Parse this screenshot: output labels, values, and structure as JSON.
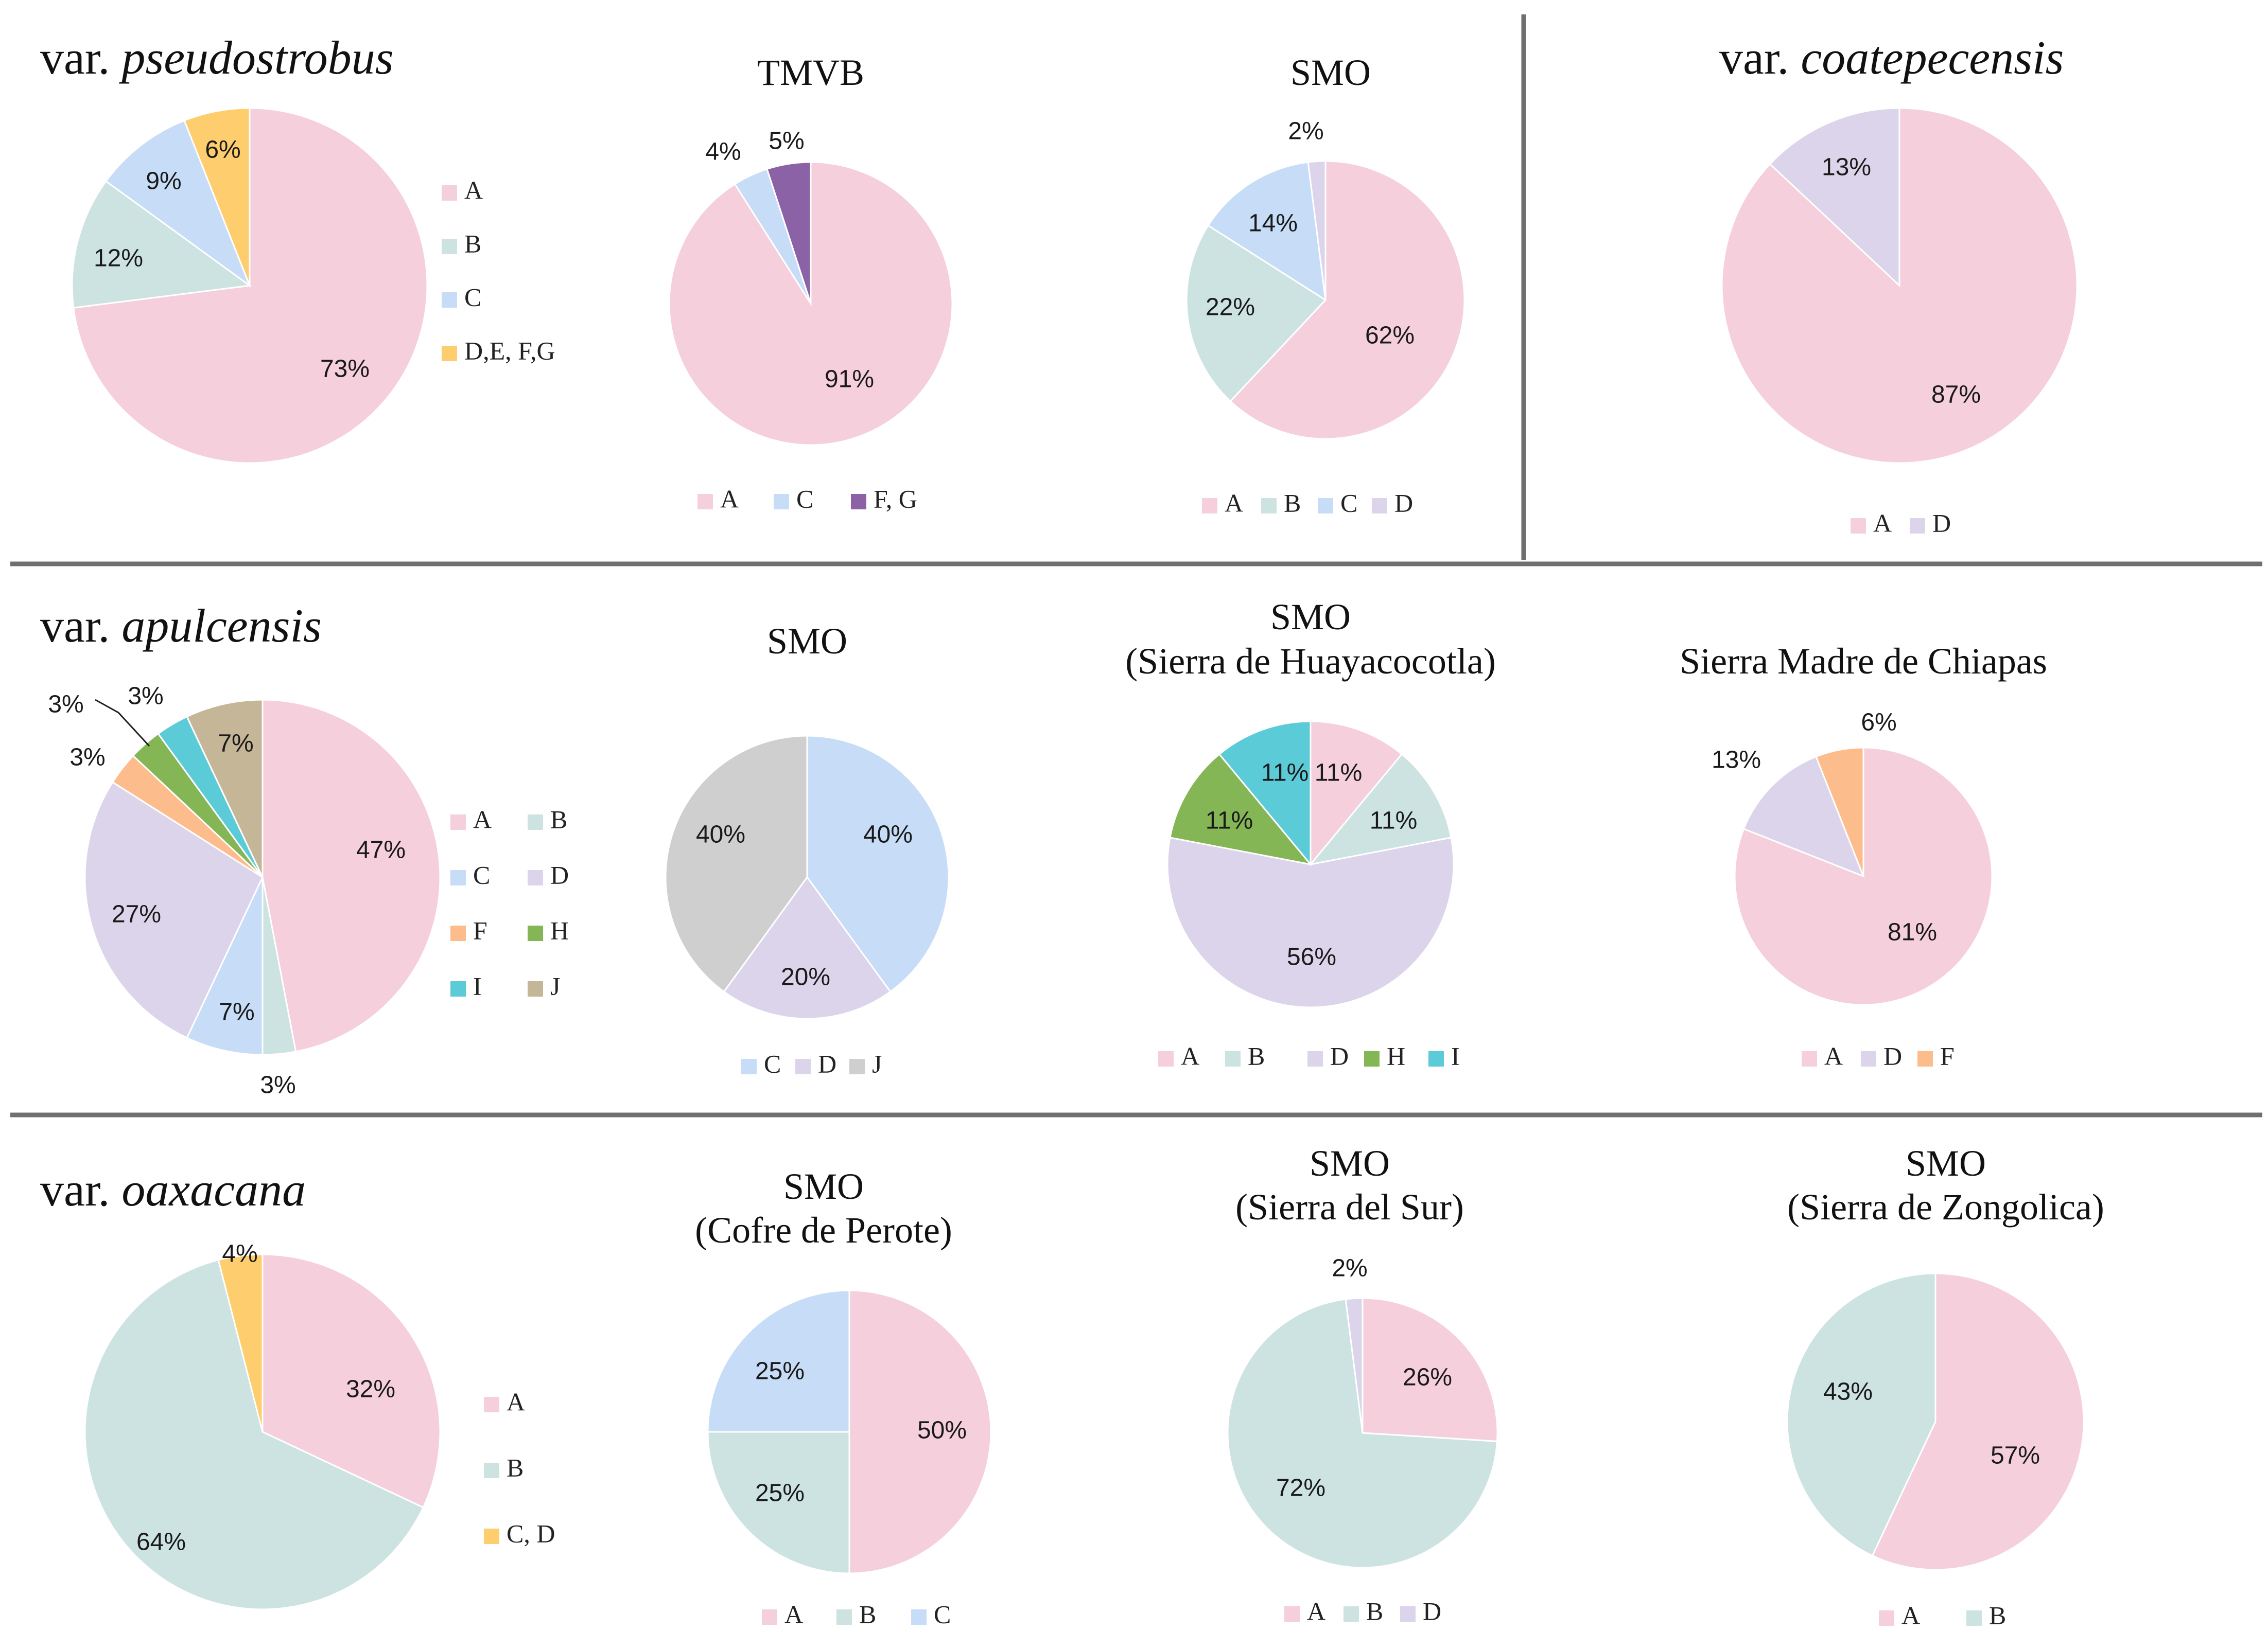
{
  "colors": {
    "A": "#f5cfdb",
    "B": "#cce3e2",
    "C": "#c7dcf7",
    "D": "#dcd4ea",
    "DEFG": "#fdcd6e",
    "FG": "#8b62a6",
    "F": "#fdbc8c",
    "H": "#84b656",
    "I": "#5ccbd8",
    "J": "#c4b696",
    "J_grey": "#cfcfcf",
    "CD": "#fdcd6e",
    "divider": "#6f6f6f"
  },
  "chart_data": [
    {
      "type": "pie",
      "id": "pseudostrobus",
      "title_prefix": "var. ",
      "title_italic": "pseudostrobus",
      "labels": [
        "A",
        "B",
        "C",
        "D,E, F,G"
      ],
      "values": [
        73,
        12,
        9,
        6
      ],
      "data_labels": [
        "73%",
        "12%",
        "9%",
        "6%"
      ],
      "color_keys": [
        "A",
        "B",
        "C",
        "DEFG"
      ],
      "legend_position": "right"
    },
    {
      "type": "pie",
      "id": "tmvb",
      "title": "TMVB",
      "labels": [
        "A",
        "C",
        "F, G"
      ],
      "values": [
        91,
        4,
        5
      ],
      "data_labels": [
        "91%",
        "4%",
        "5%"
      ],
      "color_keys": [
        "A",
        "C",
        "FG"
      ],
      "legend_position": "bottom"
    },
    {
      "type": "pie",
      "id": "smo-1",
      "title": "SMO",
      "labels": [
        "A",
        "B",
        "C",
        "D"
      ],
      "values": [
        62,
        22,
        14,
        2
      ],
      "data_labels": [
        "62%",
        "22%",
        "14%",
        "2%"
      ],
      "color_keys": [
        "A",
        "B",
        "C",
        "D"
      ],
      "legend_position": "bottom"
    },
    {
      "type": "pie",
      "id": "coatepecensis",
      "title_prefix": "var. ",
      "title_italic": "coatepecensis",
      "labels": [
        "A",
        "D"
      ],
      "values": [
        87,
        13
      ],
      "data_labels": [
        "87%",
        "13%"
      ],
      "color_keys": [
        "A",
        "D"
      ],
      "legend_position": "bottom"
    },
    {
      "type": "pie",
      "id": "apulcensis",
      "title_prefix": "var. ",
      "title_italic": "apulcensis",
      "labels": [
        "A",
        "B",
        "C",
        "D",
        "F",
        "H",
        "I",
        "J"
      ],
      "values": [
        47,
        3,
        7,
        27,
        3,
        3,
        3,
        7
      ],
      "data_labels": [
        "47%",
        "3%",
        "7%",
        "27%",
        "3%",
        "3%",
        "3%",
        "7%"
      ],
      "color_keys": [
        "A",
        "B",
        "C",
        "D",
        "F",
        "H",
        "I",
        "J"
      ],
      "legend_position": "right"
    },
    {
      "type": "pie",
      "id": "smo-2",
      "title": "SMO",
      "labels": [
        "C",
        "D",
        "J"
      ],
      "values": [
        40,
        20,
        40
      ],
      "data_labels": [
        "40%",
        "20%",
        "40%"
      ],
      "color_keys": [
        "C",
        "D",
        "J_grey"
      ],
      "legend_position": "bottom"
    },
    {
      "type": "pie",
      "id": "huayacocotla",
      "title": "SMO",
      "subtitle": "(Sierra de Huayacocotla)",
      "labels": [
        "A",
        "B",
        "D",
        "H",
        "I"
      ],
      "values": [
        11,
        11,
        56,
        11,
        11
      ],
      "data_labels": [
        "11%",
        "11%",
        "56%",
        "11%",
        "11%"
      ],
      "color_keys": [
        "A",
        "B",
        "D",
        "H",
        "I"
      ],
      "legend_position": "bottom"
    },
    {
      "type": "pie",
      "id": "chiapas",
      "title": "Sierra Madre de Chiapas",
      "labels": [
        "A",
        "D",
        "F"
      ],
      "values": [
        81,
        13,
        6
      ],
      "data_labels": [
        "81%",
        "13%",
        "6%"
      ],
      "color_keys": [
        "A",
        "D",
        "F"
      ],
      "legend_position": "bottom"
    },
    {
      "type": "pie",
      "id": "oaxacana",
      "title_prefix": "var. ",
      "title_italic": "oaxacana",
      "labels": [
        "A",
        "B",
        "C, D"
      ],
      "values": [
        32,
        64,
        4
      ],
      "data_labels": [
        "32%",
        "64%",
        "4%"
      ],
      "color_keys": [
        "A",
        "B",
        "CD"
      ],
      "legend_position": "right"
    },
    {
      "type": "pie",
      "id": "cofre",
      "title": "SMO",
      "subtitle": "(Cofre de Perote)",
      "labels": [
        "A",
        "B",
        "C"
      ],
      "values": [
        50,
        25,
        25
      ],
      "data_labels": [
        "50%",
        "25%",
        "25%"
      ],
      "color_keys": [
        "A",
        "B",
        "C"
      ],
      "legend_position": "bottom"
    },
    {
      "type": "pie",
      "id": "sur",
      "title": "SMO",
      "subtitle": "(Sierra del Sur)",
      "labels": [
        "A",
        "B",
        "D"
      ],
      "values": [
        26,
        72,
        2
      ],
      "data_labels": [
        "26%",
        "72%",
        "2%"
      ],
      "color_keys": [
        "A",
        "B",
        "D"
      ],
      "legend_position": "bottom"
    },
    {
      "type": "pie",
      "id": "zongolica",
      "title": "SMO",
      "subtitle": "(Sierra de Zongolica)",
      "labels": [
        "A",
        "B"
      ],
      "values": [
        57,
        43
      ],
      "data_labels": [
        "57%",
        "43%"
      ],
      "color_keys": [
        "A",
        "B"
      ],
      "legend_position": "bottom"
    }
  ]
}
